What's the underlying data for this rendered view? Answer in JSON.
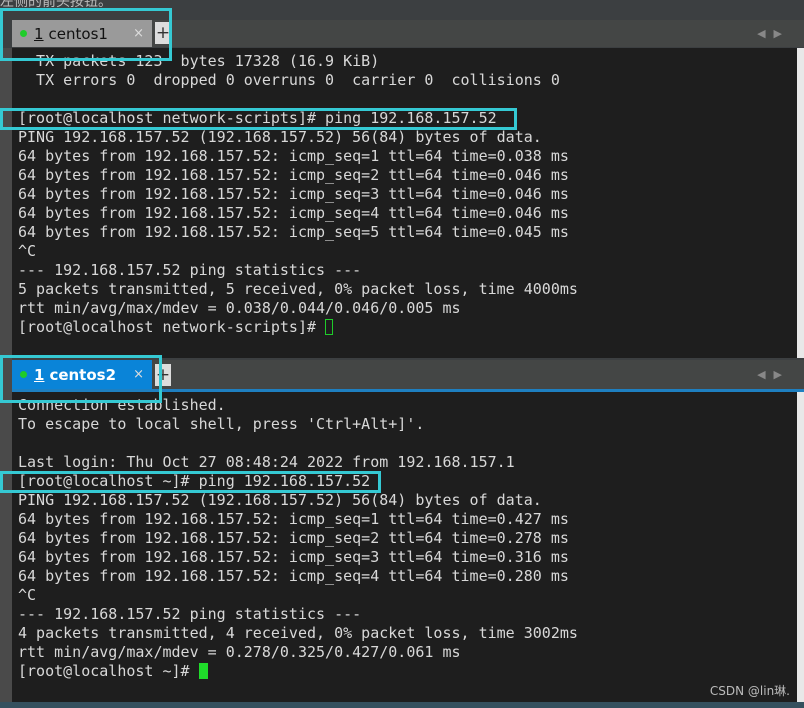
{
  "caption": "左侧的箭头按钮。",
  "top": {
    "tab": {
      "number": "1",
      "name": "centos1"
    },
    "lines": [
      "  TX packets 123  bytes 17328 (16.9 KiB)",
      "  TX errors 0  dropped 0 overruns 0  carrier 0  collisions 0",
      "",
      "[root@localhost network-scripts]# ping 192.168.157.52",
      "PING 192.168.157.52 (192.168.157.52) 56(84) bytes of data.",
      "64 bytes from 192.168.157.52: icmp_seq=1 ttl=64 time=0.038 ms",
      "64 bytes from 192.168.157.52: icmp_seq=2 ttl=64 time=0.046 ms",
      "64 bytes from 192.168.157.52: icmp_seq=3 ttl=64 time=0.046 ms",
      "64 bytes from 192.168.157.52: icmp_seq=4 ttl=64 time=0.046 ms",
      "64 bytes from 192.168.157.52: icmp_seq=5 ttl=64 time=0.045 ms",
      "^C",
      "--- 192.168.157.52 ping statistics ---",
      "5 packets transmitted, 5 received, 0% packet loss, time 4000ms",
      "rtt min/avg/max/mdev = 0.038/0.044/0.046/0.005 ms"
    ],
    "prompt": "[root@localhost network-scripts]# "
  },
  "bottom": {
    "tab": {
      "number": "1",
      "name": "centos2"
    },
    "lines": [
      "Connection established.",
      "To escape to local shell, press 'Ctrl+Alt+]'.",
      "",
      "Last login: Thu Oct 27 08:48:24 2022 from 192.168.157.1",
      "[root@localhost ~]# ping 192.168.157.52",
      "PING 192.168.157.52 (192.168.157.52) 56(84) bytes of data.",
      "64 bytes from 192.168.157.52: icmp_seq=1 ttl=64 time=0.427 ms",
      "64 bytes from 192.168.157.52: icmp_seq=2 ttl=64 time=0.278 ms",
      "64 bytes from 192.168.157.52: icmp_seq=3 ttl=64 time=0.316 ms",
      "64 bytes from 192.168.157.52: icmp_seq=4 ttl=64 time=0.280 ms",
      "^C",
      "--- 192.168.157.52 ping statistics ---",
      "4 packets transmitted, 4 received, 0% packet loss, time 3002ms",
      "rtt min/avg/max/mdev = 0.278/0.325/0.427/0.061 ms"
    ],
    "prompt": "[root@localhost ~]# "
  },
  "icons": {
    "close": "×",
    "add": "+",
    "arrows": "◀▶"
  },
  "watermark": "CSDN @lin琳."
}
